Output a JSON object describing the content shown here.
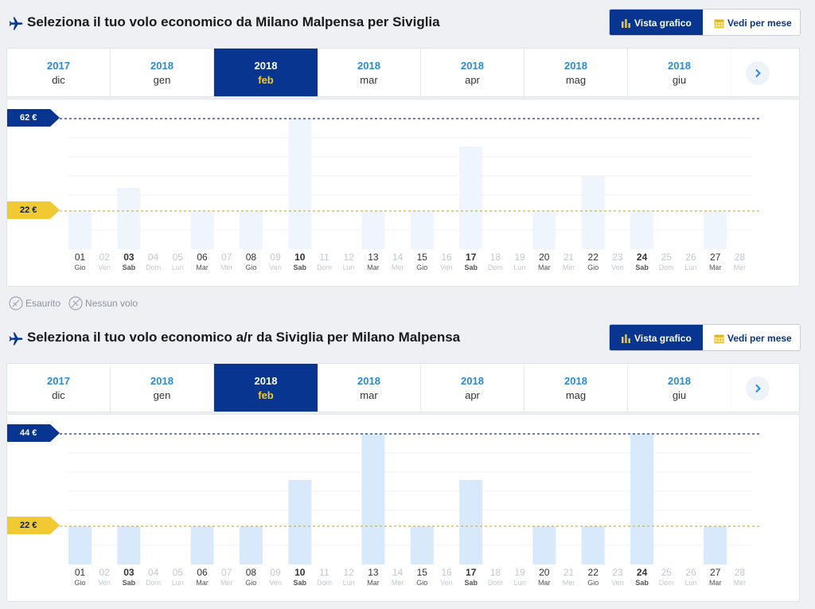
{
  "colors": {
    "navy": "#073590",
    "yellow": "#f1c933",
    "bar_light": "#eef5fd",
    "bar": "#d8e9fb",
    "year_blue": "#2a8ad2"
  },
  "outbound": {
    "title": "Seleziona il tuo volo economico da Milano Malpensa per Siviglia",
    "view_graph_label": "Vista grafico",
    "view_month_label": "Vedi per mese",
    "months": [
      {
        "year": "2017",
        "month": "dic",
        "active": false
      },
      {
        "year": "2018",
        "month": "gen",
        "active": false
      },
      {
        "year": "2018",
        "month": "feb",
        "active": true
      },
      {
        "year": "2018",
        "month": "mar",
        "active": false
      },
      {
        "year": "2018",
        "month": "apr",
        "active": false
      },
      {
        "year": "2018",
        "month": "mag",
        "active": false
      },
      {
        "year": "2018",
        "month": "giu",
        "active": false
      }
    ],
    "max_price_label": "62 €",
    "min_price_label": "22 €"
  },
  "return": {
    "title": "Seleziona il tuo volo economico a/r da Siviglia per Milano Malpensa",
    "view_graph_label": "Vista grafico",
    "view_month_label": "Vedi per mese",
    "months": [
      {
        "year": "2017",
        "month": "dic",
        "active": false
      },
      {
        "year": "2018",
        "month": "gen",
        "active": false
      },
      {
        "year": "2018",
        "month": "feb",
        "active": true
      },
      {
        "year": "2018",
        "month": "mar",
        "active": false
      },
      {
        "year": "2018",
        "month": "apr",
        "active": false
      },
      {
        "year": "2018",
        "month": "mag",
        "active": false
      },
      {
        "year": "2018",
        "month": "giu",
        "active": false
      }
    ],
    "max_price_label": "44 €",
    "min_price_label": "22 €"
  },
  "legend": {
    "sold_out_label": "Esaurito",
    "no_flight_label": "Nessun volo"
  },
  "chart_data": [
    {
      "type": "bar",
      "title": "Seleziona il tuo volo economico da Milano Malpensa per Siviglia",
      "categories": [
        {
          "day": "01",
          "dow": "Gio",
          "bold": false
        },
        {
          "day": "02",
          "dow": "Ven",
          "bold": false
        },
        {
          "day": "03",
          "dow": "Sab",
          "bold": true
        },
        {
          "day": "04",
          "dow": "Dom",
          "bold": false
        },
        {
          "day": "05",
          "dow": "Lun",
          "bold": false
        },
        {
          "day": "06",
          "dow": "Mar",
          "bold": false
        },
        {
          "day": "07",
          "dow": "Mer",
          "bold": false
        },
        {
          "day": "08",
          "dow": "Gio",
          "bold": false
        },
        {
          "day": "09",
          "dow": "Ven",
          "bold": false
        },
        {
          "day": "10",
          "dow": "Sab",
          "bold": true
        },
        {
          "day": "11",
          "dow": "Dom",
          "bold": false
        },
        {
          "day": "12",
          "dow": "Lun",
          "bold": false
        },
        {
          "day": "13",
          "dow": "Mar",
          "bold": false
        },
        {
          "day": "14",
          "dow": "Mer",
          "bold": false
        },
        {
          "day": "15",
          "dow": "Gio",
          "bold": false
        },
        {
          "day": "16",
          "dow": "Ven",
          "bold": false
        },
        {
          "day": "17",
          "dow": "Sab",
          "bold": true
        },
        {
          "day": "18",
          "dow": "Dom",
          "bold": false
        },
        {
          "day": "19",
          "dow": "Lun",
          "bold": false
        },
        {
          "day": "20",
          "dow": "Mar",
          "bold": false
        },
        {
          "day": "21",
          "dow": "Mer",
          "bold": false
        },
        {
          "day": "22",
          "dow": "Gio",
          "bold": false
        },
        {
          "day": "23",
          "dow": "Ven",
          "bold": false
        },
        {
          "day": "24",
          "dow": "Sab",
          "bold": true
        },
        {
          "day": "25",
          "dow": "Dom",
          "bold": false
        },
        {
          "day": "26",
          "dow": "Lun",
          "bold": false
        },
        {
          "day": "27",
          "dow": "Mar",
          "bold": false
        },
        {
          "day": "28",
          "dow": "Mer",
          "bold": false
        }
      ],
      "values": [
        22,
        null,
        32,
        null,
        null,
        22,
        null,
        22,
        null,
        62,
        null,
        null,
        22,
        null,
        22,
        null,
        50,
        null,
        null,
        22,
        null,
        37,
        null,
        22,
        null,
        null,
        22,
        null
      ],
      "reference_lines": [
        62,
        22
      ],
      "ylim": [
        0,
        62
      ],
      "grid": true
    },
    {
      "type": "bar",
      "title": "Seleziona il tuo volo economico a/r da Siviglia per Milano Malpensa",
      "categories": [
        {
          "day": "01",
          "dow": "Gio",
          "bold": false
        },
        {
          "day": "02",
          "dow": "Ven",
          "bold": false
        },
        {
          "day": "03",
          "dow": "Sab",
          "bold": true
        },
        {
          "day": "04",
          "dow": "Dom",
          "bold": false
        },
        {
          "day": "05",
          "dow": "Lun",
          "bold": false
        },
        {
          "day": "06",
          "dow": "Mar",
          "bold": false
        },
        {
          "day": "07",
          "dow": "Mer",
          "bold": false
        },
        {
          "day": "08",
          "dow": "Gio",
          "bold": false
        },
        {
          "day": "09",
          "dow": "Ven",
          "bold": false
        },
        {
          "day": "10",
          "dow": "Sab",
          "bold": true
        },
        {
          "day": "11",
          "dow": "Dom",
          "bold": false
        },
        {
          "day": "12",
          "dow": "Lun",
          "bold": false
        },
        {
          "day": "13",
          "dow": "Mar",
          "bold": false
        },
        {
          "day": "14",
          "dow": "Mer",
          "bold": false
        },
        {
          "day": "15",
          "dow": "Gio",
          "bold": false
        },
        {
          "day": "16",
          "dow": "Ven",
          "bold": false
        },
        {
          "day": "17",
          "dow": "Sab",
          "bold": true
        },
        {
          "day": "18",
          "dow": "Dom",
          "bold": false
        },
        {
          "day": "19",
          "dow": "Lun",
          "bold": false
        },
        {
          "day": "20",
          "dow": "Mar",
          "bold": false
        },
        {
          "day": "21",
          "dow": "Mer",
          "bold": false
        },
        {
          "day": "22",
          "dow": "Gio",
          "bold": false
        },
        {
          "day": "23",
          "dow": "Ven",
          "bold": false
        },
        {
          "day": "24",
          "dow": "Sab",
          "bold": true
        },
        {
          "day": "25",
          "dow": "Dom",
          "bold": false
        },
        {
          "day": "26",
          "dow": "Lun",
          "bold": false
        },
        {
          "day": "27",
          "dow": "Mar",
          "bold": false
        },
        {
          "day": "28",
          "dow": "Mer",
          "bold": false
        }
      ],
      "values": [
        22,
        null,
        22,
        null,
        null,
        22,
        null,
        22,
        null,
        33,
        null,
        null,
        44,
        null,
        22,
        null,
        33,
        null,
        null,
        22,
        null,
        22,
        null,
        44,
        null,
        null,
        22,
        null
      ],
      "reference_lines": [
        44,
        22
      ],
      "ylim": [
        0,
        44
      ],
      "grid": true
    }
  ]
}
